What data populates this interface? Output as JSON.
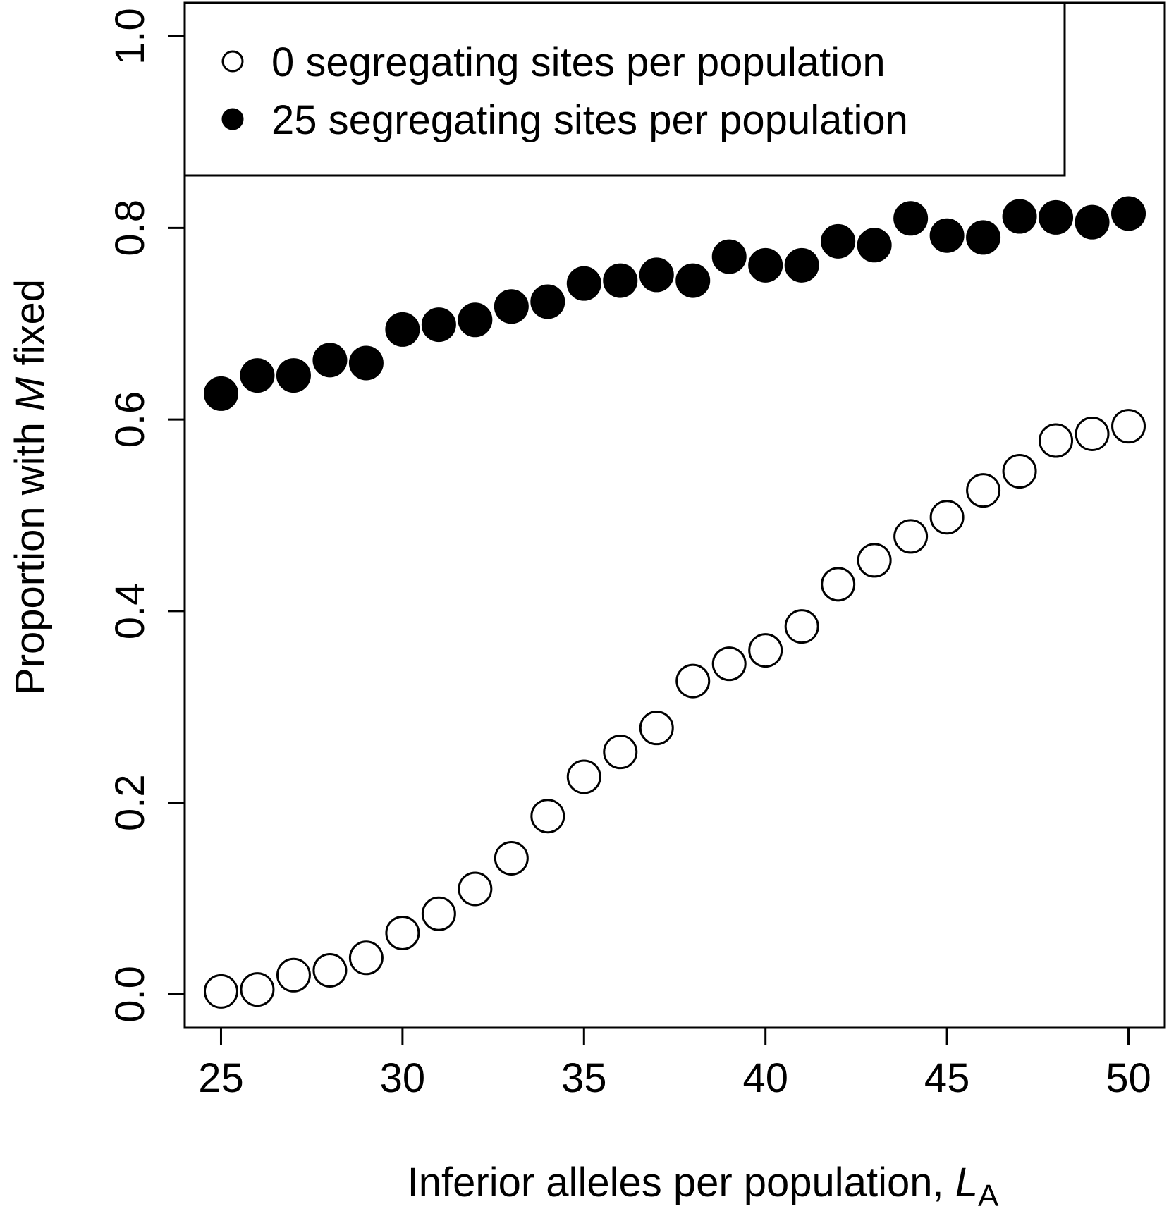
{
  "chart_data": {
    "type": "scatter",
    "xlabel": "Inferior alleles per population, ",
    "xlabel_symbol": "L",
    "xlabel_subscript": "A",
    "ylabel_prefix": "Proportion with ",
    "ylabel_symbol": "M",
    "ylabel_suffix": " fixed",
    "xlim": [
      24,
      51
    ],
    "ylim": [
      -0.035,
      1.035
    ],
    "x_ticks": [
      "25",
      "30",
      "35",
      "40",
      "45",
      "50"
    ],
    "y_ticks": [
      "0.0",
      "0.2",
      "0.4",
      "0.6",
      "0.8",
      "1.0"
    ],
    "grid": false,
    "legend_position": "top-left",
    "x": [
      25,
      26,
      27,
      28,
      29,
      30,
      31,
      32,
      33,
      34,
      35,
      36,
      37,
      38,
      39,
      40,
      41,
      42,
      43,
      44,
      45,
      46,
      47,
      48,
      49,
      50
    ],
    "series": [
      {
        "name": "0 segregating sites per population",
        "marker": "open-circle",
        "color": "#000000",
        "values": [
          0.003,
          0.005,
          0.02,
          0.025,
          0.038,
          0.064,
          0.084,
          0.11,
          0.142,
          0.186,
          0.227,
          0.253,
          0.278,
          0.327,
          0.345,
          0.359,
          0.384,
          0.428,
          0.453,
          0.478,
          0.498,
          0.526,
          0.546,
          0.578,
          0.585,
          0.593
        ]
      },
      {
        "name": "25 segregating sites per population",
        "marker": "filled-circle",
        "color": "#000000",
        "values": [
          0.627,
          0.646,
          0.646,
          0.662,
          0.659,
          0.694,
          0.699,
          0.704,
          0.718,
          0.723,
          0.742,
          0.745,
          0.751,
          0.745,
          0.77,
          0.761,
          0.761,
          0.786,
          0.782,
          0.81,
          0.792,
          0.79,
          0.812,
          0.811,
          0.806,
          0.815
        ]
      }
    ]
  }
}
